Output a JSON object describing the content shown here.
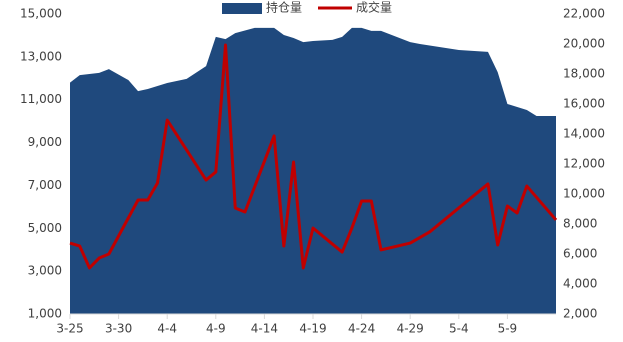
{
  "chart_data": {
    "type": "area-line",
    "xlim": [
      0,
      50
    ],
    "xticks": [
      {
        "value": 0,
        "label": "3-25"
      },
      {
        "value": 5,
        "label": "3-30"
      },
      {
        "value": 10,
        "label": "4-4"
      },
      {
        "value": 15,
        "label": "4-9"
      },
      {
        "value": 20,
        "label": "4-14"
      },
      {
        "value": 25,
        "label": "4-19"
      },
      {
        "value": 30,
        "label": "4-24"
      },
      {
        "value": 35,
        "label": "4-29"
      },
      {
        "value": 40,
        "label": "5-4"
      },
      {
        "value": 45,
        "label": "5-9"
      }
    ],
    "ylim": [
      1000,
      15000
    ],
    "yticks": [
      {
        "value": 1000,
        "label": "1,000"
      },
      {
        "value": 3000,
        "label": "3,000"
      },
      {
        "value": 5000,
        "label": "5,000"
      },
      {
        "value": 7000,
        "label": "7,000"
      },
      {
        "value": 9000,
        "label": "9,000"
      },
      {
        "value": 11000,
        "label": "11,000"
      },
      {
        "value": 13000,
        "label": "13,000"
      },
      {
        "value": 15000,
        "label": "15,000"
      }
    ],
    "y2lim": [
      2000,
      22000
    ],
    "y2ticks": [
      {
        "value": 2000,
        "label": "2,000"
      },
      {
        "value": 4000,
        "label": "4,000"
      },
      {
        "value": 6000,
        "label": "6,000"
      },
      {
        "value": 8000,
        "label": "8,000"
      },
      {
        "value": 10000,
        "label": "10,000"
      },
      {
        "value": 12000,
        "label": "12,000"
      },
      {
        "value": 14000,
        "label": "14,000"
      },
      {
        "value": 16000,
        "label": "16,000"
      },
      {
        "value": 18000,
        "label": "18,000"
      },
      {
        "value": 20000,
        "label": "20,000"
      },
      {
        "value": 22000,
        "label": "22,000"
      }
    ],
    "series": [
      {
        "name": "持仓量",
        "kind": "area",
        "color": "#1f497d",
        "x": [
          0,
          1,
          3,
          4,
          6,
          7,
          8,
          9,
          10,
          12,
          14,
          15,
          16,
          17,
          19,
          21,
          22,
          23,
          24,
          25,
          27,
          28,
          29,
          30,
          31,
          32,
          35,
          36,
          40,
          43,
          44,
          45,
          47,
          48,
          50
        ],
        "values": [
          11800,
          12150,
          12250,
          12430,
          11920,
          11400,
          11500,
          11640,
          11780,
          11970,
          12570,
          13930,
          13830,
          14110,
          14350,
          14350,
          14020,
          13880,
          13690,
          13740,
          13790,
          13930,
          14350,
          14350,
          14210,
          14210,
          13690,
          13600,
          13320,
          13230,
          12290,
          10800,
          10520,
          10240,
          10240
        ]
      },
      {
        "name": "成交量",
        "kind": "line",
        "axis": "y2",
        "color": "#c00000",
        "x": [
          0,
          1,
          2,
          3,
          4,
          7,
          8,
          9,
          10,
          14,
          15,
          16,
          17,
          18,
          21,
          22,
          23,
          24,
          25,
          28,
          29,
          30,
          31,
          32,
          35,
          37,
          43,
          44,
          45,
          46,
          47,
          50
        ],
        "values": [
          6730,
          6530,
          5070,
          5730,
          6000,
          9600,
          9600,
          10730,
          14930,
          10930,
          11470,
          19930,
          9070,
          8800,
          13870,
          6530,
          12130,
          5070,
          7730,
          6130,
          7730,
          9530,
          9530,
          6270,
          6730,
          7470,
          10670,
          6600,
          9200,
          8730,
          10530,
          8270
        ]
      }
    ]
  }
}
